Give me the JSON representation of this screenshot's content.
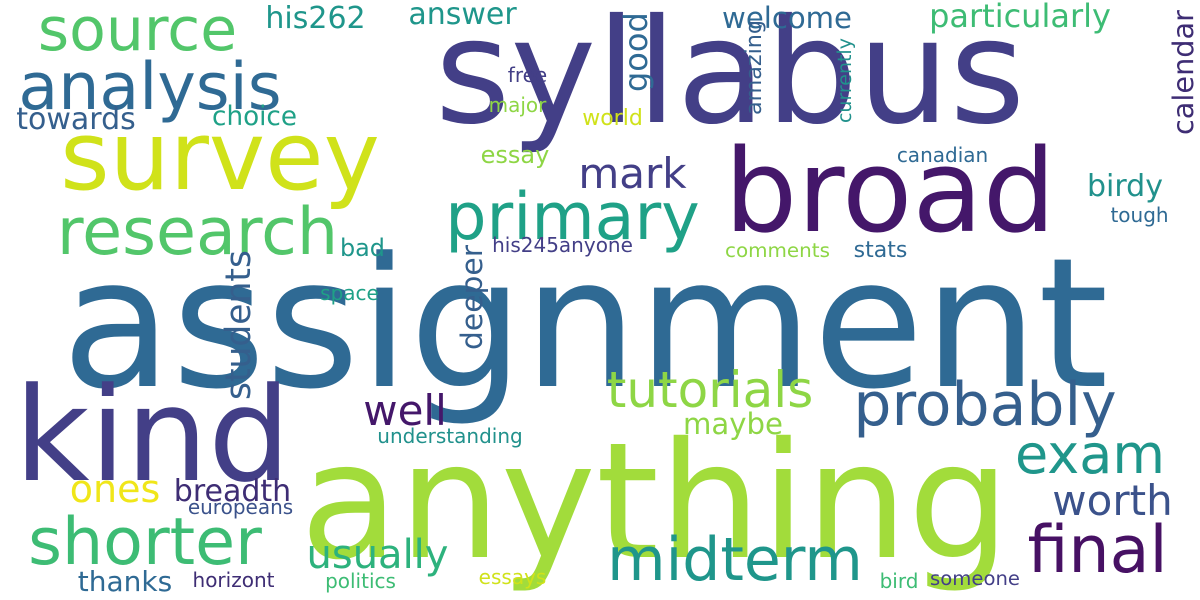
{
  "words": [
    {
      "text": "syllabus",
      "color": "#433f87"
    },
    {
      "text": "assignment",
      "color": "#2f6a94"
    },
    {
      "text": "anything",
      "color": "#a2dc3b"
    },
    {
      "text": "broad",
      "color": "#44176a"
    },
    {
      "text": "kind",
      "color": "#433f87"
    },
    {
      "text": "survey",
      "color": "#d0e21a"
    },
    {
      "text": "analysis",
      "color": "#2f6a94"
    },
    {
      "text": "source",
      "color": "#52c66a"
    },
    {
      "text": "research",
      "color": "#52c66a"
    },
    {
      "text": "primary",
      "color": "#1fa187"
    },
    {
      "text": "probably",
      "color": "#355f8d"
    },
    {
      "text": "midterm",
      "color": "#1f968b"
    },
    {
      "text": "shorter",
      "color": "#3dbc74"
    },
    {
      "text": "final",
      "color": "#471164"
    },
    {
      "text": "exam",
      "color": "#1f968b"
    },
    {
      "text": "tutorials",
      "color": "#8ed645"
    },
    {
      "text": "worth",
      "color": "#3b528b"
    },
    {
      "text": "usually",
      "color": "#2db27d"
    },
    {
      "text": "well",
      "color": "#44176a"
    },
    {
      "text": "mark",
      "color": "#433f87"
    },
    {
      "text": "ones",
      "color": "#f0e619"
    },
    {
      "text": "breadth",
      "color": "#3e2d74"
    },
    {
      "text": "students",
      "color": "#355f8d"
    },
    {
      "text": "deeper",
      "color": "#355f8d"
    },
    {
      "text": "good",
      "color": "#2f6a94"
    },
    {
      "text": "his262",
      "color": "#1f968b"
    },
    {
      "text": "answer",
      "color": "#1f968b"
    },
    {
      "text": "welcome",
      "color": "#2f6a94"
    },
    {
      "text": "particularly",
      "color": "#3dbc74"
    },
    {
      "text": "calendar",
      "color": "#3e2d74"
    },
    {
      "text": "towards",
      "color": "#355f8d"
    },
    {
      "text": "choice",
      "color": "#1fa187"
    },
    {
      "text": "birdy",
      "color": "#21918c"
    },
    {
      "text": "maybe",
      "color": "#8ed645"
    },
    {
      "text": "thanks",
      "color": "#2f6a94"
    },
    {
      "text": "essay",
      "color": "#8ed645"
    },
    {
      "text": "bad",
      "color": "#1f968b"
    },
    {
      "text": "his245anyone",
      "color": "#433f87"
    },
    {
      "text": "free",
      "color": "#433f87"
    },
    {
      "text": "major",
      "color": "#8ed645"
    },
    {
      "text": "world",
      "color": "#d0e21a"
    },
    {
      "text": "amazing",
      "color": "#355f8d"
    },
    {
      "text": "currently",
      "color": "#21918c"
    },
    {
      "text": "canadian",
      "color": "#2f6a94"
    },
    {
      "text": "tough",
      "color": "#2f6a94"
    },
    {
      "text": "comments",
      "color": "#8ed645"
    },
    {
      "text": "stats",
      "color": "#2f6a94"
    },
    {
      "text": "space",
      "color": "#1fa187"
    },
    {
      "text": "understanding",
      "color": "#21918c"
    },
    {
      "text": "europeans",
      "color": "#3b528b"
    },
    {
      "text": "horizont",
      "color": "#3e2d74"
    },
    {
      "text": "politics",
      "color": "#3dbc74"
    },
    {
      "text": "essays",
      "color": "#d0e21a"
    },
    {
      "text": "bird",
      "color": "#3dbc74"
    },
    {
      "text": "someone",
      "color": "#433f87"
    }
  ]
}
